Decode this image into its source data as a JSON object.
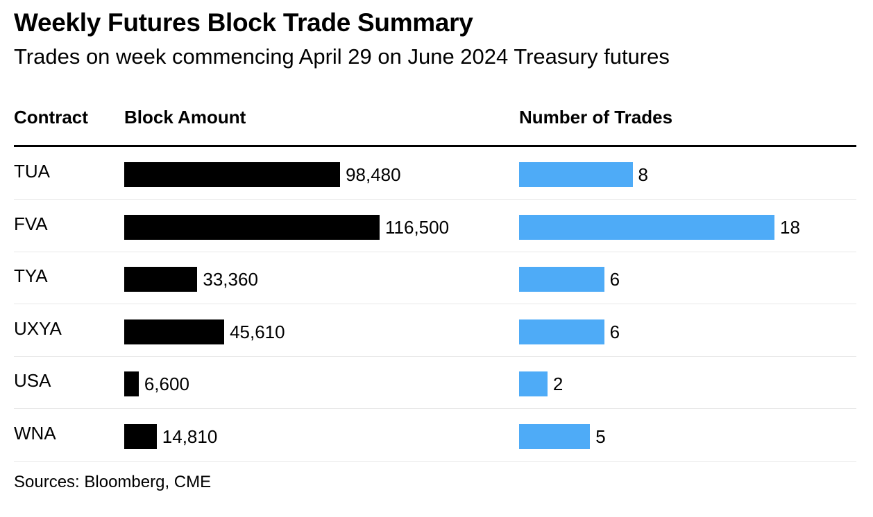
{
  "title": "Weekly Futures Block Trade Summary",
  "subtitle": "Trades on week commencing April 29 on June 2024 Treasury futures",
  "headers": {
    "contract": "Contract",
    "block_amount": "Block Amount",
    "num_trades": "Number of Trades"
  },
  "source": "Sources: Bloomberg, CME",
  "colors": {
    "block_bar": "#000000",
    "trades_bar": "#4eabf7"
  },
  "chart_data": {
    "type": "bar",
    "orientation": "horizontal",
    "categories": [
      "TUA",
      "FVA",
      "TYA",
      "UXYA",
      "USA",
      "WNA"
    ],
    "series": [
      {
        "name": "Block Amount",
        "values": [
          98480,
          116500,
          33360,
          45610,
          6600,
          14810
        ],
        "labels": [
          "98,480",
          "116,500",
          "33,360",
          "45,610",
          "6,600",
          "14,810"
        ]
      },
      {
        "name": "Number of Trades",
        "values": [
          8,
          18,
          6,
          6,
          2,
          5
        ],
        "labels": [
          "8",
          "18",
          "6",
          "6",
          "2",
          "5"
        ]
      }
    ],
    "title": "Weekly Futures Block Trade Summary",
    "xlabel": "",
    "ylabel": ""
  }
}
